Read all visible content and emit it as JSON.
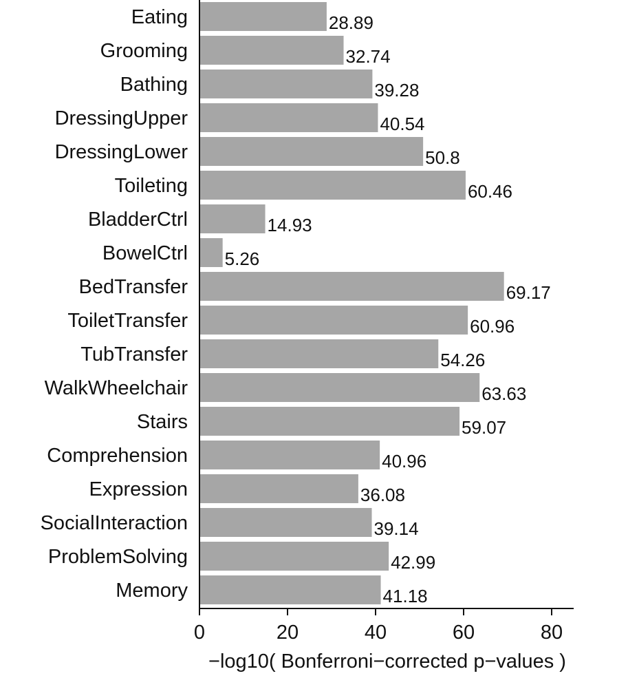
{
  "chart_data": {
    "type": "bar",
    "orientation": "horizontal",
    "title": "",
    "xlabel": "−log10( Bonferroni−corrected p−values )",
    "ylabel": "",
    "xlim": [
      0,
      85
    ],
    "xticks": [
      0,
      20,
      40,
      60,
      80
    ],
    "grid": false,
    "legend": "none",
    "bar_color": "#a6a6a6",
    "categories": [
      "Eating",
      "Grooming",
      "Bathing",
      "DressingUpper",
      "DressingLower",
      "Toileting",
      "BladderCtrl",
      "BowelCtrl",
      "BedTransfer",
      "ToiletTransfer",
      "TubTransfer",
      "WalkWheelchair",
      "Stairs",
      "Comprehension",
      "Expression",
      "SocialInteraction",
      "ProblemSolving",
      "Memory"
    ],
    "values": [
      28.89,
      32.74,
      39.28,
      40.54,
      50.8,
      60.46,
      14.93,
      5.26,
      69.17,
      60.96,
      54.26,
      63.63,
      59.07,
      40.96,
      36.08,
      39.14,
      42.99,
      41.18
    ],
    "value_labels": [
      "28.89",
      "32.74",
      "39.28",
      "40.54",
      "50.8",
      "60.46",
      "14.93",
      "5.26",
      "69.17",
      "60.96",
      "54.26",
      "63.63",
      "59.07",
      "40.96",
      "36.08",
      "39.14",
      "42.99",
      "41.18"
    ]
  }
}
